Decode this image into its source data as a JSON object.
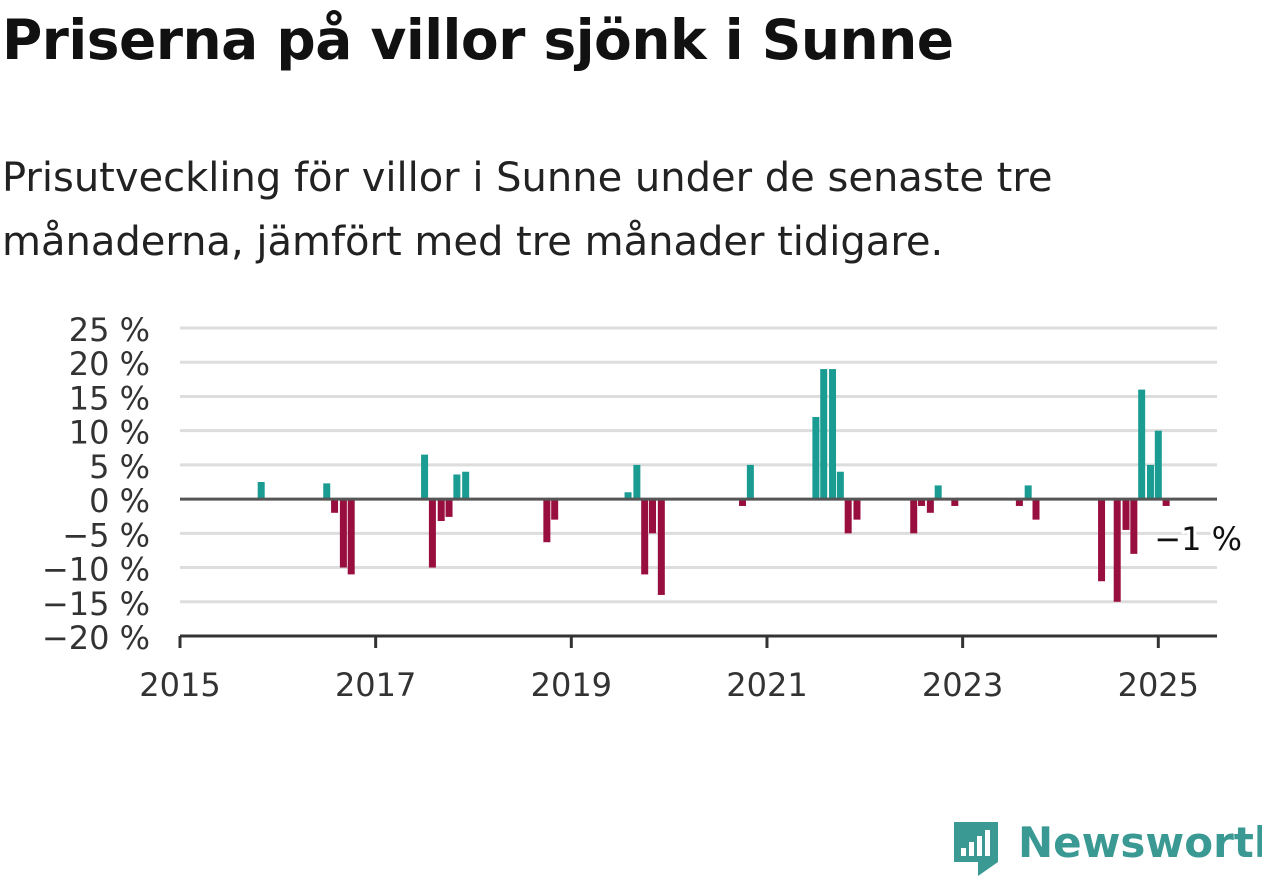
{
  "title": "Priserna på villor sjönk i Sunne",
  "subtitle_lines": [
    "Prisutveckling för villor i Sunne under de senaste tre",
    "månaderna, jämfört med tre månader tidigare."
  ],
  "brand": {
    "name": "Newsworthy",
    "color": "#3a9a93"
  },
  "colors": {
    "positive": "#1a9c93",
    "negative": "#980e3e",
    "grid": "#dddddd",
    "axis": "#333333"
  },
  "chart_data": {
    "type": "bar",
    "annotation": {
      "x": 2025.0,
      "value": -1,
      "text": "−1 %"
    },
    "ylim": [
      -20,
      25
    ],
    "yticks": [
      25,
      20,
      15,
      10,
      5,
      0,
      -5,
      -10,
      -15,
      -20
    ],
    "ytick_labels": [
      "25 %",
      "20 %",
      "15 %",
      "10 %",
      "5 %",
      "0 %",
      "−5 %",
      "−10 %",
      "−15 %",
      "−20 %"
    ],
    "xlim": [
      2015,
      2025.6
    ],
    "xticks": [
      2015,
      2017,
      2019,
      2021,
      2023,
      2025
    ],
    "xtick_labels": [
      "2015",
      "2017",
      "2019",
      "2021",
      "2023",
      "2025"
    ],
    "points": [
      {
        "x": 2015.83,
        "value": 2.5
      },
      {
        "x": 2016.5,
        "value": 2.3
      },
      {
        "x": 2016.58,
        "value": -2
      },
      {
        "x": 2016.67,
        "value": -10
      },
      {
        "x": 2016.75,
        "value": -11
      },
      {
        "x": 2017.5,
        "value": 6.5
      },
      {
        "x": 2017.58,
        "value": -10
      },
      {
        "x": 2017.67,
        "value": -3.2
      },
      {
        "x": 2017.75,
        "value": -2.6
      },
      {
        "x": 2017.83,
        "value": 3.6
      },
      {
        "x": 2017.92,
        "value": 4
      },
      {
        "x": 2018.75,
        "value": -6.3
      },
      {
        "x": 2018.83,
        "value": -3
      },
      {
        "x": 2019.58,
        "value": 1
      },
      {
        "x": 2019.67,
        "value": 5
      },
      {
        "x": 2019.75,
        "value": -11
      },
      {
        "x": 2019.83,
        "value": -5
      },
      {
        "x": 2019.92,
        "value": -14
      },
      {
        "x": 2020.75,
        "value": -1
      },
      {
        "x": 2020.83,
        "value": 5
      },
      {
        "x": 2021.5,
        "value": 12
      },
      {
        "x": 2021.58,
        "value": 19
      },
      {
        "x": 2021.67,
        "value": 19
      },
      {
        "x": 2021.75,
        "value": 4
      },
      {
        "x": 2021.83,
        "value": -5
      },
      {
        "x": 2021.92,
        "value": -3
      },
      {
        "x": 2022.5,
        "value": -5
      },
      {
        "x": 2022.58,
        "value": -1
      },
      {
        "x": 2022.67,
        "value": -2
      },
      {
        "x": 2022.75,
        "value": 2
      },
      {
        "x": 2022.92,
        "value": -1
      },
      {
        "x": 2023.58,
        "value": -1
      },
      {
        "x": 2023.67,
        "value": 2
      },
      {
        "x": 2023.75,
        "value": -3
      },
      {
        "x": 2024.42,
        "value": -12
      },
      {
        "x": 2024.58,
        "value": -15
      },
      {
        "x": 2024.67,
        "value": -4.5
      },
      {
        "x": 2024.75,
        "value": -8
      },
      {
        "x": 2024.83,
        "value": 16
      },
      {
        "x": 2024.92,
        "value": 5
      },
      {
        "x": 2025.0,
        "value": 10
      },
      {
        "x": 2025.08,
        "value": -1
      }
    ]
  }
}
